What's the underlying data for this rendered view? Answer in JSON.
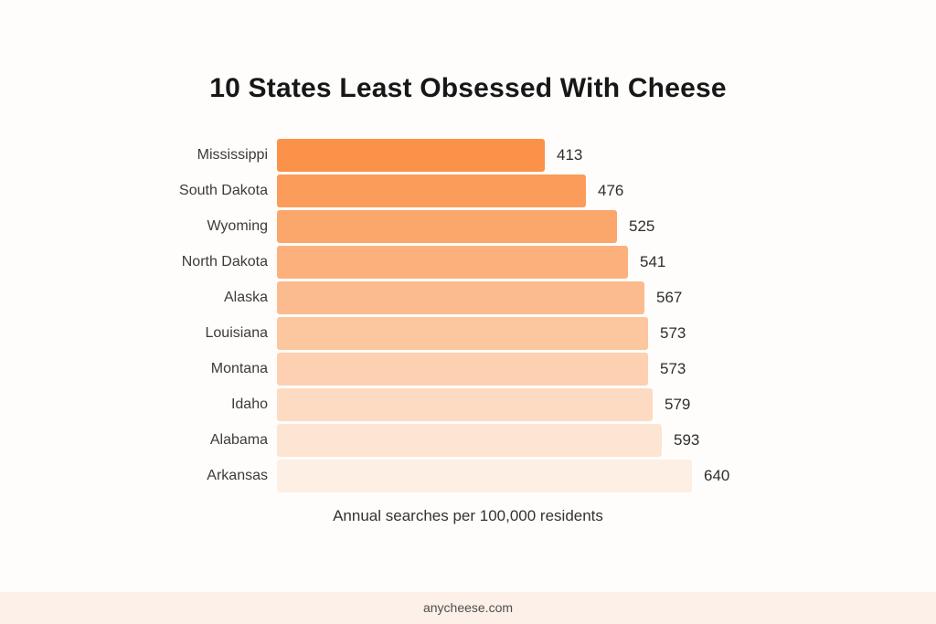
{
  "page": {
    "background": "#FFFDFB",
    "title": "10 States Least Obsessed With Cheese",
    "subtitle": "Annual searches per 100,000 residents",
    "footer": {
      "text": "anycheese.com",
      "background": "#FCF0E8"
    }
  },
  "chart_data": {
    "type": "bar",
    "orientation": "horizontal",
    "title": "10 States Least Obsessed With Cheese",
    "xlabel": "Annual searches per 100,000 residents",
    "categories": [
      "Mississippi",
      "South Dakota",
      "Wyoming",
      "North Dakota",
      "Alaska",
      "Louisiana",
      "Montana",
      "Idaho",
      "Alabama",
      "Arkansas"
    ],
    "values": [
      413,
      476,
      525,
      541,
      567,
      573,
      573,
      579,
      593,
      640
    ],
    "xlim": [
      0,
      640
    ],
    "grid": false,
    "legend": "none",
    "bar_colors": [
      "#FB9249",
      "#FB9C5A",
      "#FBA76B",
      "#FCB17D",
      "#FCBB8E",
      "#FCC69F",
      "#FCD0B0",
      "#FDDAC2",
      "#FDE5D3",
      "#FDEFE4"
    ],
    "category_label_color": "#3B3B3B",
    "value_label_color": "#2E2E2E",
    "title_color": "#171717"
  }
}
